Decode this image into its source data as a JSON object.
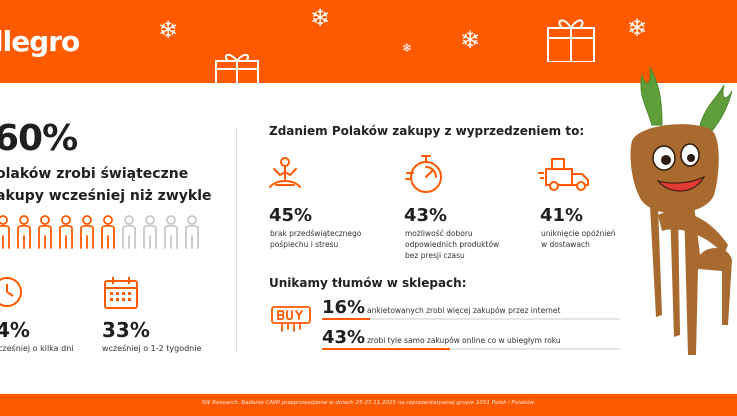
{
  "brand": {
    "logo_text": "llegro",
    "accent": "#ff5a00"
  },
  "hero": {
    "percent": "60%",
    "lead_line1": "olaków zrobi świąteczne",
    "lead_line2": "akupy wcześniej niż zwykle",
    "people_total": 10,
    "people_highlighted": 6
  },
  "timing": [
    {
      "percent": "4%",
      "label": "cześniej o kilka dni",
      "icon": "clock-icon"
    },
    {
      "percent": "33%",
      "label": "wcześniej o 1-2 tygodnie",
      "icon": "calendar-icon"
    }
  ],
  "reasons": {
    "title": "Zdaniem Polaków zakupy z wyprzedzeniem to:",
    "items": [
      {
        "percent": "45%",
        "line1": "brak przedświątecznego",
        "line2": "pośpiechu i stresu",
        "line3": "",
        "icon": "meditation-icon"
      },
      {
        "percent": "43%",
        "line1": "możliwość doboru",
        "line2": "odpowiednich produktów",
        "line3": "bez presji czasu",
        "icon": "stopwatch-icon"
      },
      {
        "percent": "41%",
        "line1": "uniknięcie opóźnień",
        "line2": "w dostawach",
        "line3": "",
        "icon": "delivery-truck-icon"
      }
    ]
  },
  "crowds": {
    "title": "Unikamy tłumów w sklepach:",
    "rows": [
      {
        "percent": "16%",
        "label": "ankietowanych zrobi więcej zakupów przez internet",
        "fill": 0.16
      },
      {
        "percent": "43%",
        "label": "zrobi tyle samo zakupów online co w ubiegłym roku",
        "fill": 0.43
      }
    ]
  },
  "footer": {
    "note": "SW Research. Badanie CAWI przeprowadzone w dniach 25-27.11.2025 na reprezentatywnej grupie 1051 Polek i Polaków."
  }
}
